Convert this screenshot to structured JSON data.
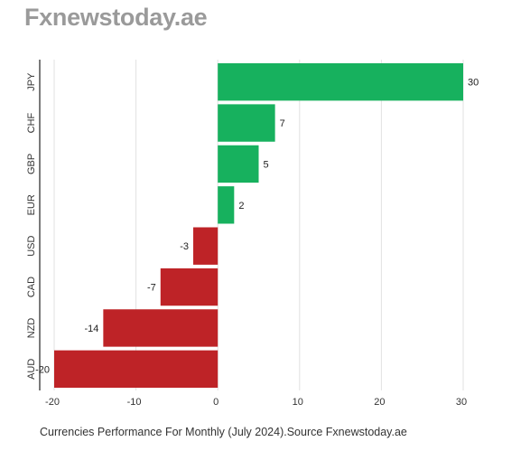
{
  "brand": "Fxnewstoday.ae",
  "caption": "Currencies Performance For Monthly (July 2024).Source Fxnewstoday.ae",
  "colors": {
    "positive": "#17b15e",
    "negative": "#be2327",
    "grid": "#e2e2e2",
    "axis": "#222222"
  },
  "chart_data": {
    "type": "bar",
    "orientation": "horizontal",
    "categories": [
      "JPY",
      "CHF",
      "GBP",
      "EUR",
      "USD",
      "CAD",
      "NZD",
      "AUD"
    ],
    "values": [
      30,
      7,
      5,
      2,
      -3,
      -7,
      -14,
      -20
    ],
    "data_labels": [
      "30",
      "7",
      "5",
      "2",
      "-3",
      "-7",
      "-14",
      "-20"
    ],
    "x_ticks": [
      -20,
      -10,
      0,
      10,
      20,
      30
    ],
    "x_tick_labels": [
      "-20",
      "-10",
      "0",
      "10",
      "20",
      "30"
    ],
    "xlim": [
      -20,
      30
    ],
    "grid": true,
    "legend": "none"
  }
}
